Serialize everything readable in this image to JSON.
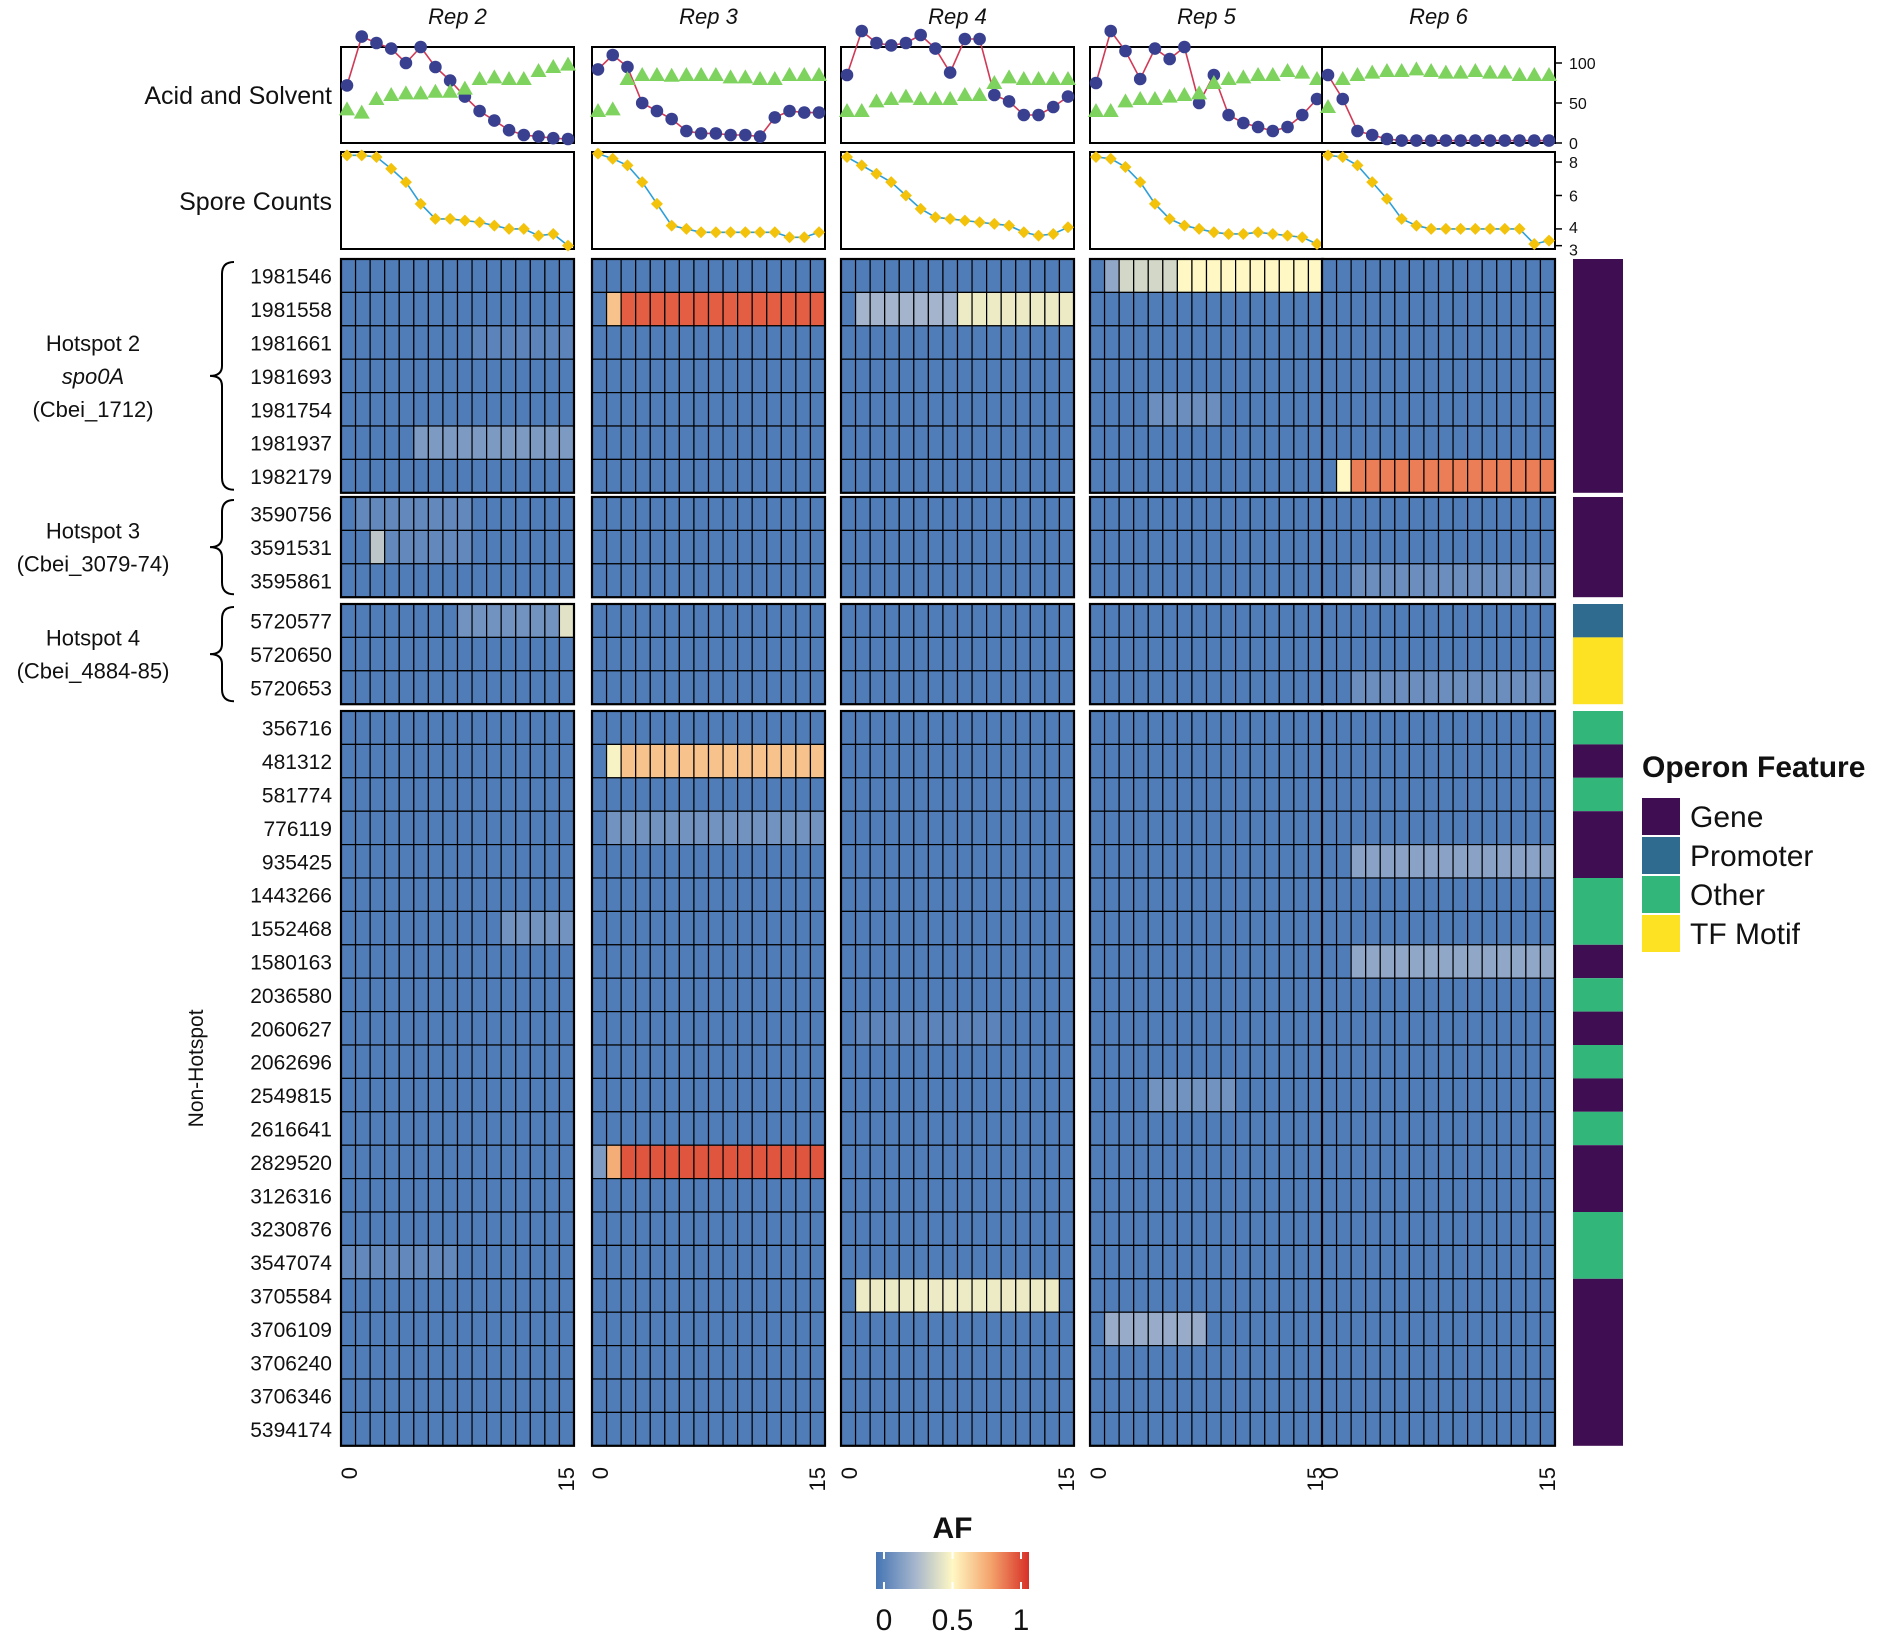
{
  "chart_data": {
    "type": "heatmap",
    "title": "",
    "columns": [
      "Rep 2",
      "Rep 3",
      "Rep 4",
      "Rep 5",
      "Rep 6"
    ],
    "timepoints": 16,
    "x_tick_labels": [
      "0",
      "15"
    ],
    "colors": {
      "acid_line": "#d03a57",
      "acid_marker": "#39408f",
      "solvent_marker": "#7ed35e",
      "spore_line": "#2d9fd9",
      "spore_marker": "#f3c20b",
      "cell_border": "#000000",
      "panel_border": "#000000"
    },
    "top_panels": {
      "acid_solvent": {
        "label": "Acid and Solvent",
        "ylim": [
          0,
          120
        ],
        "y_ticks": [
          "0",
          "50",
          "100"
        ],
        "acid": [
          [
            72,
            133,
            125,
            118,
            100,
            120,
            95,
            78,
            58,
            40,
            28,
            16,
            10,
            8,
            6,
            5
          ],
          [
            92,
            110,
            95,
            50,
            40,
            30,
            15,
            12,
            12,
            10,
            10,
            8,
            32,
            40,
            38,
            38
          ],
          [
            85,
            140,
            125,
            122,
            125,
            135,
            118,
            88,
            130,
            130,
            60,
            52,
            35,
            35,
            45,
            58
          ],
          [
            75,
            140,
            115,
            80,
            118,
            105,
            120,
            50,
            85,
            35,
            25,
            20,
            15,
            20,
            35,
            55
          ],
          [
            85,
            55,
            15,
            10,
            5,
            3,
            3,
            3,
            3,
            3,
            3,
            3,
            3,
            3,
            3,
            3
          ]
        ],
        "solvent": [
          [
            42,
            38,
            55,
            60,
            62,
            62,
            64,
            64,
            68,
            80,
            82,
            80,
            80,
            90,
            95,
            98
          ],
          [
            40,
            42,
            80,
            85,
            85,
            84,
            85,
            85,
            85,
            82,
            82,
            80,
            80,
            85,
            85,
            85
          ],
          [
            40,
            40,
            52,
            55,
            58,
            55,
            55,
            55,
            60,
            60,
            75,
            82,
            80,
            80,
            80,
            80
          ],
          [
            40,
            40,
            52,
            55,
            55,
            58,
            60,
            62,
            75,
            80,
            82,
            85,
            85,
            90,
            88,
            80
          ],
          [
            45,
            80,
            85,
            88,
            90,
            90,
            92,
            90,
            88,
            88,
            90,
            88,
            88,
            85,
            85,
            85
          ]
        ]
      },
      "spore": {
        "label": "Spore Counts",
        "ylim": [
          2.8,
          8.6
        ],
        "y_ticks": [
          "3",
          "4",
          "6",
          "8"
        ],
        "values": [
          [
            8.4,
            8.4,
            8.3,
            7.6,
            6.8,
            5.5,
            4.6,
            4.6,
            4.5,
            4.4,
            4.2,
            4.0,
            4.0,
            3.6,
            3.7,
            3.0
          ],
          [
            8.5,
            8.2,
            7.8,
            6.8,
            5.5,
            4.2,
            4.0,
            3.8,
            3.8,
            3.8,
            3.8,
            3.8,
            3.8,
            3.5,
            3.5,
            3.8
          ],
          [
            8.3,
            7.8,
            7.3,
            6.8,
            6.0,
            5.2,
            4.7,
            4.6,
            4.5,
            4.4,
            4.3,
            4.2,
            3.8,
            3.6,
            3.7,
            4.1
          ],
          [
            8.3,
            8.2,
            7.7,
            6.8,
            5.5,
            4.6,
            4.2,
            4.0,
            3.8,
            3.7,
            3.7,
            3.8,
            3.7,
            3.6,
            3.5,
            3.1
          ],
          [
            8.4,
            8.3,
            7.8,
            6.8,
            5.8,
            4.6,
            4.2,
            4.0,
            4.0,
            4.0,
            4.0,
            4.0,
            4.0,
            4.0,
            3.1,
            3.3
          ]
        ]
      }
    },
    "groups": [
      {
        "label_lines": [
          "Hotspot 2",
          "spo0A",
          "(Cbei_1712)"
        ],
        "italic_line": 1,
        "rows": [
          "1981546",
          "1981558",
          "1981661",
          "1981693",
          "1981754",
          "1981937",
          "1982179"
        ],
        "features": [
          "Gene",
          "Gene",
          "Gene",
          "Gene",
          "Gene",
          "Gene",
          "Gene"
        ]
      },
      {
        "label_lines": [
          "Hotspot 3",
          "(Cbei_3079-74)"
        ],
        "italic_line": -1,
        "rows": [
          "3590756",
          "3591531",
          "3595861"
        ],
        "features": [
          "Gene",
          "Gene",
          "Gene"
        ]
      },
      {
        "label_lines": [
          "Hotspot 4",
          "(Cbei_4884-85)"
        ],
        "italic_line": -1,
        "rows": [
          "5720577",
          "5720650",
          "5720653"
        ],
        "features": [
          "Promoter",
          "TF Motif",
          "TF Motif"
        ]
      },
      {
        "label_lines": [
          "Non-Hotspot"
        ],
        "italic_line": -1,
        "vertical": true,
        "rows": [
          "356716",
          "481312",
          "581774",
          "776119",
          "935425",
          "1443266",
          "1552468",
          "1580163",
          "2036580",
          "2060627",
          "2062696",
          "2549815",
          "2616641",
          "2829520",
          "3126316",
          "3230876",
          "3547074",
          "3705584",
          "3706109",
          "3706240",
          "3706346",
          "5394174"
        ],
        "features": [
          "Other",
          "Gene",
          "Other",
          "Gene",
          "Gene",
          "Other",
          "Other",
          "Gene",
          "Other",
          "Gene",
          "Other",
          "Gene",
          "Other",
          "Gene",
          "Gene",
          "Other",
          "Other",
          "Gene",
          "Gene",
          "Gene",
          "Gene",
          "Gene"
        ]
      }
    ],
    "highlights": [
      {
        "rep": 0,
        "row": "1981937",
        "from": 5,
        "to": 15,
        "value": 0.15
      },
      {
        "rep": 0,
        "row": "1981661",
        "from": 9,
        "to": 15,
        "value": 0.06
      },
      {
        "rep": 0,
        "row": "3590756",
        "from": 1,
        "to": 8,
        "value": 0.08
      },
      {
        "rep": 0,
        "row": "3591531",
        "from": 2,
        "to": 2,
        "value": 0.32
      },
      {
        "rep": 0,
        "row": "3591531",
        "from": 3,
        "to": 8,
        "value": 0.08
      },
      {
        "rep": 0,
        "row": "5720577",
        "from": 8,
        "to": 15,
        "value": 0.12
      },
      {
        "rep": 0,
        "row": "5720577",
        "from": 15,
        "to": 15,
        "value": 0.42
      },
      {
        "rep": 0,
        "row": "1552468",
        "from": 11,
        "to": 15,
        "value": 0.12
      },
      {
        "rep": 0,
        "row": "3547074",
        "from": 0,
        "to": 7,
        "value": 0.08
      },
      {
        "rep": 1,
        "row": "1981558",
        "from": 1,
        "to": 1,
        "value": 0.66
      },
      {
        "rep": 1,
        "row": "1981558",
        "from": 2,
        "to": 15,
        "value": 0.9
      },
      {
        "rep": 1,
        "row": "481312",
        "from": 1,
        "to": 1,
        "value": 0.48
      },
      {
        "rep": 1,
        "row": "481312",
        "from": 2,
        "to": 15,
        "value": 0.66
      },
      {
        "rep": 1,
        "row": "776119",
        "from": 1,
        "to": 15,
        "value": 0.12
      },
      {
        "rep": 1,
        "row": "2829520",
        "from": 0,
        "to": 0,
        "value": 0.15
      },
      {
        "rep": 1,
        "row": "2829520",
        "from": 1,
        "to": 1,
        "value": 0.72
      },
      {
        "rep": 1,
        "row": "2829520",
        "from": 2,
        "to": 15,
        "value": 0.92
      },
      {
        "rep": 2,
        "row": "1981558",
        "from": 1,
        "to": 7,
        "value": 0.25
      },
      {
        "rep": 2,
        "row": "1981558",
        "from": 8,
        "to": 15,
        "value": 0.45
      },
      {
        "rep": 2,
        "row": "3705584",
        "from": 1,
        "to": 14,
        "value": 0.45
      },
      {
        "rep": 2,
        "row": "2060627",
        "from": 1,
        "to": 10,
        "value": 0.06
      },
      {
        "rep": 3,
        "row": "1981546",
        "from": 1,
        "to": 1,
        "value": 0.2
      },
      {
        "rep": 3,
        "row": "1981546",
        "from": 2,
        "to": 5,
        "value": 0.38
      },
      {
        "rep": 3,
        "row": "1981546",
        "from": 6,
        "to": 15,
        "value": 0.5
      },
      {
        "rep": 3,
        "row": "3706109",
        "from": 1,
        "to": 7,
        "value": 0.22
      },
      {
        "rep": 3,
        "row": "1981754",
        "from": 4,
        "to": 8,
        "value": 0.1
      },
      {
        "rep": 3,
        "row": "2549815",
        "from": 4,
        "to": 9,
        "value": 0.12
      },
      {
        "rep": 4,
        "row": "1982179",
        "from": 1,
        "to": 1,
        "value": 0.5
      },
      {
        "rep": 4,
        "row": "1982179",
        "from": 2,
        "to": 15,
        "value": 0.83
      },
      {
        "rep": 4,
        "row": "935425",
        "from": 2,
        "to": 15,
        "value": 0.18
      },
      {
        "rep": 4,
        "row": "1580163",
        "from": 2,
        "to": 15,
        "value": 0.2
      },
      {
        "rep": 4,
        "row": "3595861",
        "from": 2,
        "to": 15,
        "value": 0.1
      },
      {
        "rep": 4,
        "row": "5720653",
        "from": 2,
        "to": 15,
        "value": 0.1
      }
    ],
    "colorbar": {
      "title": "AF",
      "ticks": [
        "0",
        "0.5",
        "1"
      ],
      "range": [
        0,
        1
      ]
    },
    "legend": {
      "title": "Operon Feature",
      "items": [
        {
          "name": "Gene",
          "color": "#3f0d52"
        },
        {
          "name": "Promoter",
          "color": "#2f6a8f"
        },
        {
          "name": "Other",
          "color": "#33b67a"
        },
        {
          "name": "TF Motif",
          "color": "#fde224"
        }
      ]
    }
  }
}
